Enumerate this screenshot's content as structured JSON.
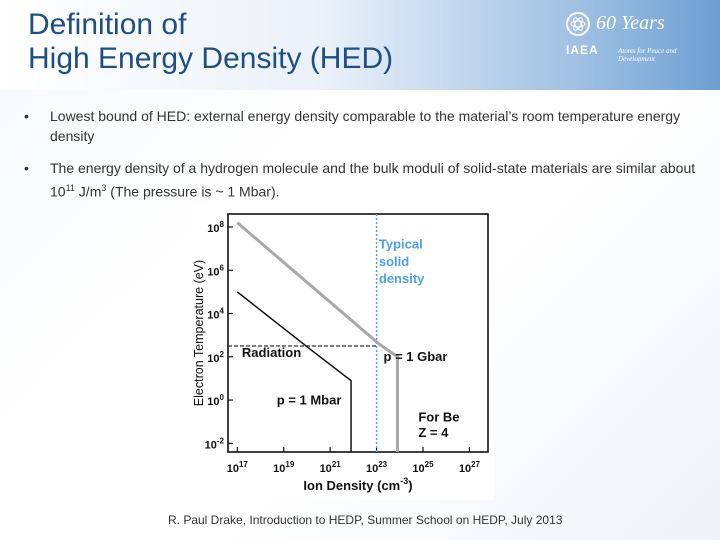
{
  "slide": {
    "title_line1": "Definition of",
    "title_line2": "High Energy Density (HED)",
    "logo": {
      "org": "IAEA",
      "years": "60 Years",
      "motto": "Atoms for Peace and Development",
      "icon": "iaea-emblem-icon"
    },
    "bullets": [
      {
        "marker": "•",
        "text": "Lowest bound of HED:  external energy density comparable to the material’s room temperature energy density"
      },
      {
        "marker": "•",
        "text_pre": "The energy density of a hydrogen molecule and the bulk moduli of solid-state materials are similar about 10",
        "exp1": "11",
        "text_mid": " J/m",
        "exp2": "3",
        "text_post": " (The pressure is ~ 1 Mbar)."
      }
    ],
    "citation": "R. Paul Drake,  Introduction to HEDP, Summer School on HEDP,  July 2013"
  },
  "chart_data": {
    "type": "line",
    "xlabel": "Ion Density (cm",
    "xlabel_sup": "-3",
    "xlabel_close": ")",
    "ylabel": "Electron Temperature (eV)",
    "x_log": true,
    "y_log": true,
    "xlim_exp": [
      16.6,
      27.8
    ],
    "ylim_exp": [
      -2.4,
      8.6
    ],
    "x_ticks": [
      {
        "base": "10",
        "exp": "17",
        "v": 17
      },
      {
        "base": "10",
        "exp": "19",
        "v": 19
      },
      {
        "base": "10",
        "exp": "21",
        "v": 21
      },
      {
        "base": "10",
        "exp": "23",
        "v": 23
      },
      {
        "base": "10",
        "exp": "25",
        "v": 25
      },
      {
        "base": "10",
        "exp": "27",
        "v": 27
      }
    ],
    "y_ticks": [
      {
        "base": "10",
        "exp": "8",
        "v": 8
      },
      {
        "base": "10",
        "exp": "6",
        "v": 6
      },
      {
        "base": "10",
        "exp": "4",
        "v": 4
      },
      {
        "base": "10",
        "exp": "2",
        "v": 2
      },
      {
        "base": "10",
        "exp": "0",
        "v": 0
      },
      {
        "base": "10",
        "exp": "-2",
        "v": -2
      }
    ],
    "series": [
      {
        "name": "p = 1 Gbar",
        "color": "#a8a8a8",
        "x_exp": [
          17.0,
          23.1,
          23.9,
          23.9
        ],
        "y_exp": [
          8.2,
          2.6,
          2.0,
          -2.4
        ]
      },
      {
        "name": "p = 1 Mbar",
        "color": "#111111",
        "x_exp": [
          17.0,
          20.2,
          21.9,
          21.9
        ],
        "y_exp": [
          5.0,
          2.3,
          0.9,
          -2.4
        ]
      }
    ],
    "reference_lines": [
      {
        "label": "Typical solid density",
        "orientation": "vertical",
        "x_exp": 23.0,
        "color": "#4aa3e0",
        "style": "dotted"
      },
      {
        "label": "Radiation",
        "orientation": "horizontal",
        "y_exp": 2.5,
        "x_to_exp": 23.0,
        "color": "#333333",
        "style": "dashed"
      }
    ],
    "annotations": [
      {
        "text": "Typical",
        "x_exp": 23.1,
        "y_exp": 7.0,
        "color": "#4aa3e0"
      },
      {
        "text": "solid",
        "x_exp": 23.1,
        "y_exp": 6.2,
        "color": "#4aa3e0"
      },
      {
        "text": "density",
        "x_exp": 23.1,
        "y_exp": 5.4,
        "color": "#4aa3e0"
      },
      {
        "text": "Radiation",
        "x_exp": 17.2,
        "y_exp": 2.0,
        "color": "#111111"
      },
      {
        "text": "p = 1 Gbar",
        "x_exp": 23.3,
        "y_exp": 1.8,
        "color": "#111111"
      },
      {
        "text": "p = 1 Mbar",
        "x_exp": 18.7,
        "y_exp": -0.2,
        "color": "#111111"
      },
      {
        "text": "For Be",
        "x_exp": 24.8,
        "y_exp": -1.0,
        "color": "#111111"
      },
      {
        "text": "Z = 4",
        "x_exp": 24.8,
        "y_exp": -1.7,
        "color": "#111111"
      }
    ],
    "grid": false
  }
}
